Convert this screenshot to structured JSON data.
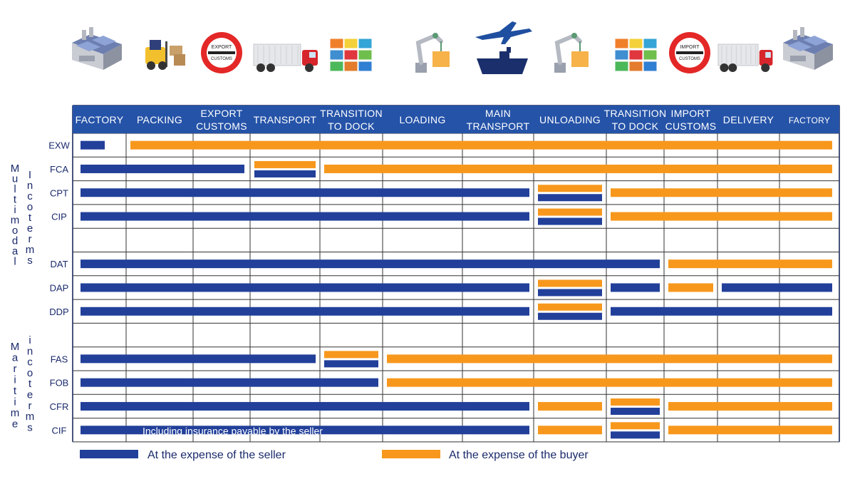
{
  "colors": {
    "seller": "#22409a",
    "buyer": "#f7981d",
    "header": "#2553a8",
    "grid": "#222222"
  },
  "stages": [
    "FACTORY",
    "PACKING",
    "EXPORT\nCUSTOMS",
    "TRANSPORT",
    "TRANSITION\nTO DOCK",
    "LOADING",
    "MAIN\nTRANSPORT",
    "UNLOADING",
    "TRANSITION\nTO DOCK",
    "IMPORT\nCUSTOMS",
    "DELIVERY",
    "FACTORY"
  ],
  "icons": [
    {
      "name": "factory-icon"
    },
    {
      "name": "forklift-icon"
    },
    {
      "name": "export-customs-icon",
      "label_top": "EXPORT",
      "label_bottom": "CUSTOMS"
    },
    {
      "name": "truck-icon"
    },
    {
      "name": "containers-icon"
    },
    {
      "name": "crane-icon"
    },
    {
      "name": "plane-ship-icon"
    },
    {
      "name": "crane-icon"
    },
    {
      "name": "containers-icon"
    },
    {
      "name": "import-customs-icon",
      "label_top": "IMPORT",
      "label_bottom": "CUSTOMS"
    },
    {
      "name": "truck-icon"
    },
    {
      "name": "factory-icon"
    }
  ],
  "groups": [
    {
      "label": "Multimodal Incoterms",
      "line1": "Multi",
      "line2": "modal",
      "line3": "Incoterms"
    },
    {
      "label": "Maritime Incoterms",
      "line1": "Maritime",
      "line2": "incoterms"
    }
  ],
  "rows": [
    {
      "label": "EXW",
      "bars": [
        {
          "c": "s",
          "from": 0,
          "to": 0.6
        },
        {
          "c": "b",
          "from": 1,
          "to": 12
        }
      ]
    },
    {
      "label": "FCA",
      "bars": [
        {
          "c": "s",
          "from": 0,
          "to": 2.9
        },
        {
          "c": "both",
          "from": 3,
          "to": 4
        },
        {
          "c": "b",
          "from": 4,
          "to": 12
        }
      ]
    },
    {
      "label": "CPT",
      "bars": [
        {
          "c": "s",
          "from": 0,
          "to": 7
        },
        {
          "c": "both",
          "from": 7,
          "to": 8
        },
        {
          "c": "b",
          "from": 8,
          "to": 12
        }
      ]
    },
    {
      "label": "CIP",
      "bars": [
        {
          "c": "s",
          "from": 0,
          "to": 7
        },
        {
          "c": "both",
          "from": 7,
          "to": 8
        },
        {
          "c": "b",
          "from": 8,
          "to": 12
        }
      ]
    },
    {
      "label": "",
      "bars": []
    },
    {
      "label": "DAT",
      "bars": [
        {
          "c": "s",
          "from": 0,
          "to": 9
        },
        {
          "c": "b",
          "from": 9,
          "to": 12
        }
      ]
    },
    {
      "label": "DAP",
      "bars": [
        {
          "c": "s",
          "from": 0,
          "to": 7
        },
        {
          "c": "both",
          "from": 7,
          "to": 8
        },
        {
          "c": "s",
          "from": 8,
          "to": 9
        },
        {
          "c": "b",
          "from": 9,
          "to": 10
        },
        {
          "c": "s",
          "from": 10,
          "to": 12
        }
      ]
    },
    {
      "label": "DDP",
      "bars": [
        {
          "c": "s",
          "from": 0,
          "to": 7
        },
        {
          "c": "both",
          "from": 7,
          "to": 8
        },
        {
          "c": "s",
          "from": 8,
          "to": 12
        }
      ]
    },
    {
      "label": "",
      "bars": []
    },
    {
      "label": "FAS",
      "bars": [
        {
          "c": "s",
          "from": 0,
          "to": 4
        },
        {
          "c": "both",
          "from": 4,
          "to": 5
        },
        {
          "c": "b",
          "from": 5,
          "to": 12
        }
      ]
    },
    {
      "label": "FOB",
      "bars": [
        {
          "c": "s",
          "from": 0,
          "to": 5
        },
        {
          "c": "b",
          "from": 5,
          "to": 12
        }
      ]
    },
    {
      "label": "CFR",
      "bars": [
        {
          "c": "s",
          "from": 0,
          "to": 7
        },
        {
          "c": "b",
          "from": 7,
          "to": 8
        },
        {
          "c": "both",
          "from": 8,
          "to": 9
        },
        {
          "c": "b",
          "from": 9,
          "to": 12
        }
      ]
    },
    {
      "label": "CIF",
      "bars": [
        {
          "c": "s",
          "from": 0,
          "to": 7
        },
        {
          "c": "b",
          "from": 7,
          "to": 8
        },
        {
          "c": "both",
          "from": 8,
          "to": 9
        },
        {
          "c": "b",
          "from": 9,
          "to": 12
        }
      ],
      "annotation": "Including insurance payable by the seller"
    }
  ],
  "legend": {
    "seller": "At the expense of the seller",
    "buyer": "At the expense of the buyer"
  }
}
